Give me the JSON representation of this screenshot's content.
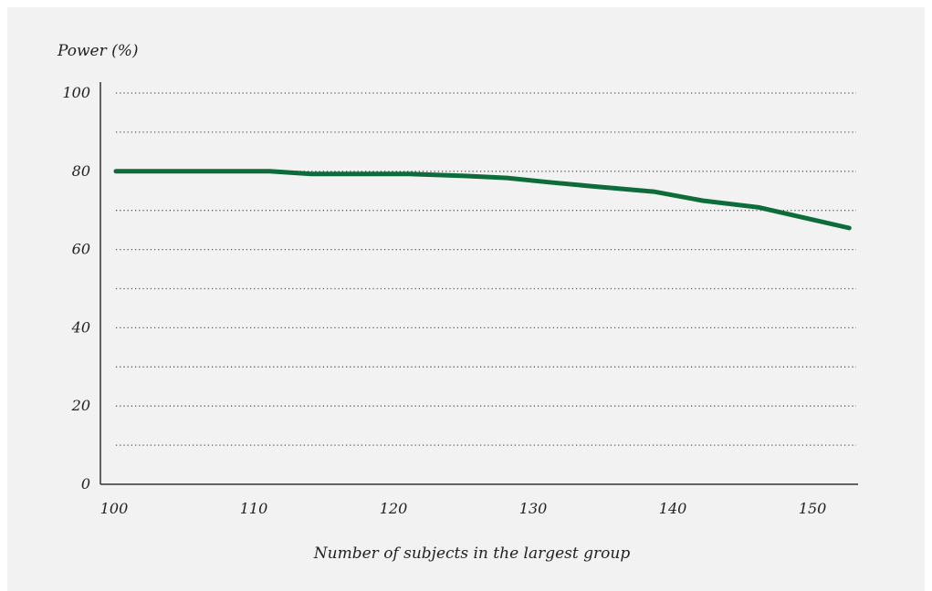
{
  "chart_data": {
    "type": "line",
    "title": "",
    "ylabel": "Power (%)",
    "xlabel": "Number of subjects in the largest group",
    "xlim": [
      100,
      153
    ],
    "ylim": [
      0,
      100
    ],
    "x_ticks": [
      "100",
      "110",
      "120",
      "130",
      "140",
      "150"
    ],
    "y_ticks": [
      "0",
      "20",
      "40",
      "60",
      "80",
      "100"
    ],
    "grid": true,
    "grid_y_step": 10,
    "series": [
      {
        "color": "#0e6b3a",
        "x": [
          100,
          111,
          114,
          121,
          125,
          128,
          131,
          134,
          138.5,
          142,
          146,
          152.5
        ],
        "y": [
          80,
          80,
          79.3,
          79.3,
          78.8,
          78.3,
          77.2,
          76.2,
          74.8,
          72.5,
          70.8,
          65.5
        ]
      }
    ]
  }
}
